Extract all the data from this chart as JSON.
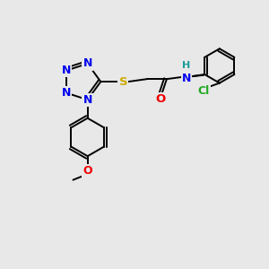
{
  "bg_color": "#e8e8e8",
  "atom_colors": {
    "C": "#000000",
    "N": "#0000ee",
    "O": "#ee0000",
    "S": "#ccaa00",
    "H": "#1a9a9a",
    "Cl": "#22aa22"
  },
  "bond_color": "#000000",
  "lw": 1.4,
  "fs": 9.0
}
